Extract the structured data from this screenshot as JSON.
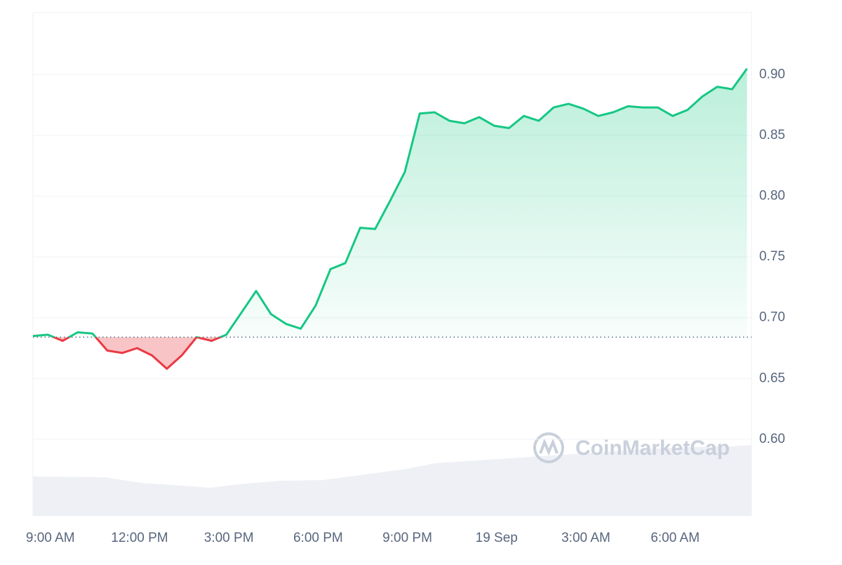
{
  "chart_data": {
    "type": "line",
    "watermark": "CoinMarketCap",
    "values": [
      0.685,
      0.686,
      0.681,
      0.688,
      0.687,
      0.673,
      0.671,
      0.675,
      0.669,
      0.658,
      0.669,
      0.684,
      0.681,
      0.686,
      0.704,
      0.722,
      0.703,
      0.695,
      0.691,
      0.71,
      0.74,
      0.745,
      0.774,
      0.773,
      0.796,
      0.82,
      0.868,
      0.869,
      0.862,
      0.86,
      0.865,
      0.858,
      0.856,
      0.866,
      0.862,
      0.873,
      0.876,
      0.872,
      0.866,
      0.869,
      0.874,
      0.873,
      0.873,
      0.866,
      0.871,
      0.882,
      0.89,
      0.888,
      0.905
    ],
    "baseline": 0.684,
    "up_color": "#16c784",
    "down_color": "#ea3943",
    "xlim": [
      0,
      48.3
    ],
    "xticks": [
      {
        "value": 1.167,
        "label": "9:00 AM"
      },
      {
        "value": 7.167,
        "label": "12:00 PM"
      },
      {
        "value": 13.167,
        "label": "3:00 PM"
      },
      {
        "value": 19.167,
        "label": "6:00 PM"
      },
      {
        "value": 25.167,
        "label": "9:00 PM"
      },
      {
        "value": 31.167,
        "label": "19 Sep"
      },
      {
        "value": 37.167,
        "label": "3:00 AM"
      },
      {
        "value": 43.167,
        "label": "6:00 AM"
      }
    ],
    "ylim": [
      0.537,
      0.951
    ],
    "yticks": [
      {
        "value": 0.6,
        "label": "0.60"
      },
      0.65,
      {
        "value": 0.7,
        "label": "0.70"
      },
      0.75,
      {
        "value": 0.8,
        "label": "0.80"
      },
      0.85,
      {
        "value": 0.9,
        "label": "0.90"
      }
    ],
    "grid": true
  }
}
